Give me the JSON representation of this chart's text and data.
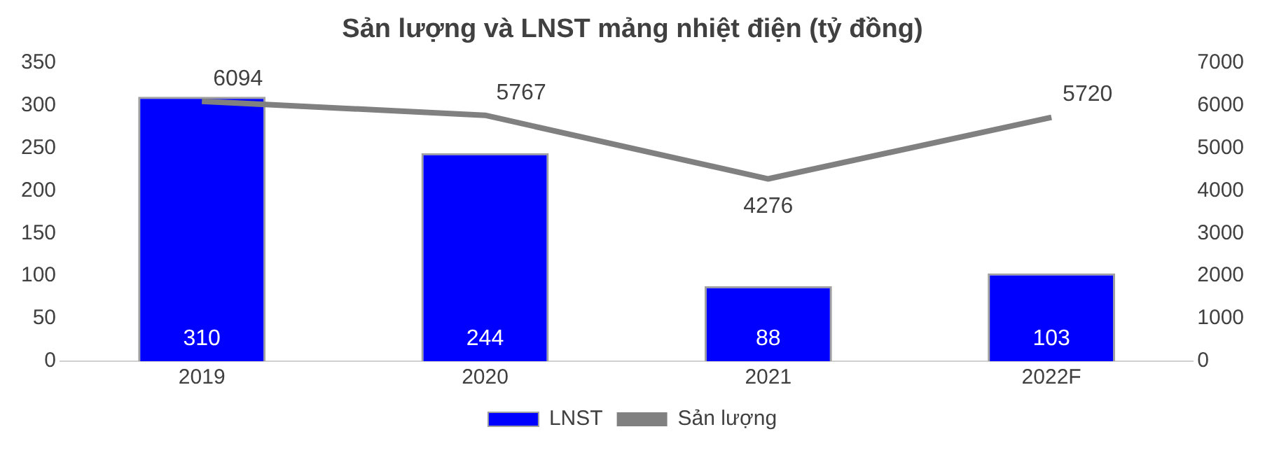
{
  "chart_data": {
    "type": "bar",
    "title": "Sản lượng và LNST mảng nhiệt điện (tỷ đồng)",
    "categories": [
      "2019",
      "2020",
      "2021",
      "2022F"
    ],
    "series": [
      {
        "name": "LNST",
        "color": "#0000ff",
        "values": [
          310,
          244,
          88,
          103
        ]
      },
      {
        "name": "Sản lượng",
        "type": "line",
        "axis": "y2",
        "color": "#808080",
        "values": [
          6094,
          5767,
          4276,
          5720
        ]
      }
    ],
    "ylim": [
      0,
      350
    ],
    "yticks": [
      0,
      50,
      100,
      150,
      200,
      250,
      300,
      350
    ],
    "y2lim": [
      0,
      7000
    ],
    "y2ticks": [
      0,
      1000,
      2000,
      3000,
      4000,
      5000,
      6000,
      7000
    ],
    "data_labels": true,
    "legend": "bottom",
    "grid": false,
    "marker": "none",
    "line_style": "solid"
  }
}
